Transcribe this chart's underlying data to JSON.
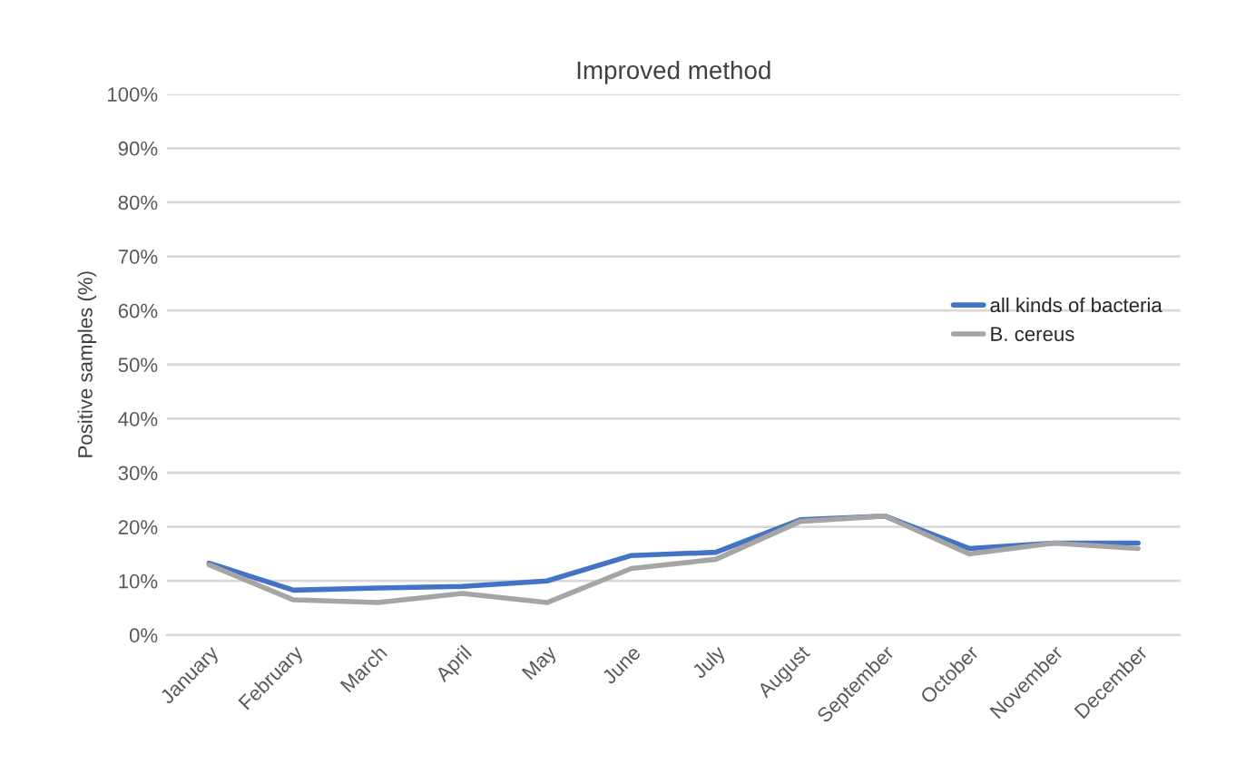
{
  "chart_data": {
    "type": "line",
    "title": "Improved method",
    "ylabel": "Positive samples (%)",
    "categories": [
      "January",
      "February",
      "March",
      "April",
      "May",
      "June",
      "July",
      "August",
      "September",
      "October",
      "November",
      "December"
    ],
    "series": [
      {
        "name": "all kinds of bacteria",
        "color": "#4472c4",
        "values": [
          13.3,
          8.3,
          8.7,
          9,
          10,
          14.7,
          15.3,
          21.3,
          22,
          16,
          17,
          17
        ]
      },
      {
        "name": "B. cereus",
        "color": "#a5a5a5",
        "values": [
          13,
          6.5,
          6,
          7.7,
          6,
          12.3,
          14,
          21,
          22,
          15,
          17,
          16
        ]
      }
    ],
    "ylim": [
      0,
      100
    ],
    "yticks": [
      {
        "value": 0,
        "label": "0%"
      },
      {
        "value": 10,
        "label": "10%"
      },
      {
        "value": 20,
        "label": "20%"
      },
      {
        "value": 30,
        "label": "30%"
      },
      {
        "value": 40,
        "label": "40%"
      },
      {
        "value": 50,
        "label": "50%"
      },
      {
        "value": 60,
        "label": "60%"
      },
      {
        "value": 70,
        "label": "70%"
      },
      {
        "value": 80,
        "label": "80%"
      },
      {
        "value": 90,
        "label": "90%"
      },
      {
        "value": 100,
        "label": "100%"
      }
    ],
    "grid": "y",
    "legend": "right",
    "marker": "none",
    "line_style": "solid"
  }
}
